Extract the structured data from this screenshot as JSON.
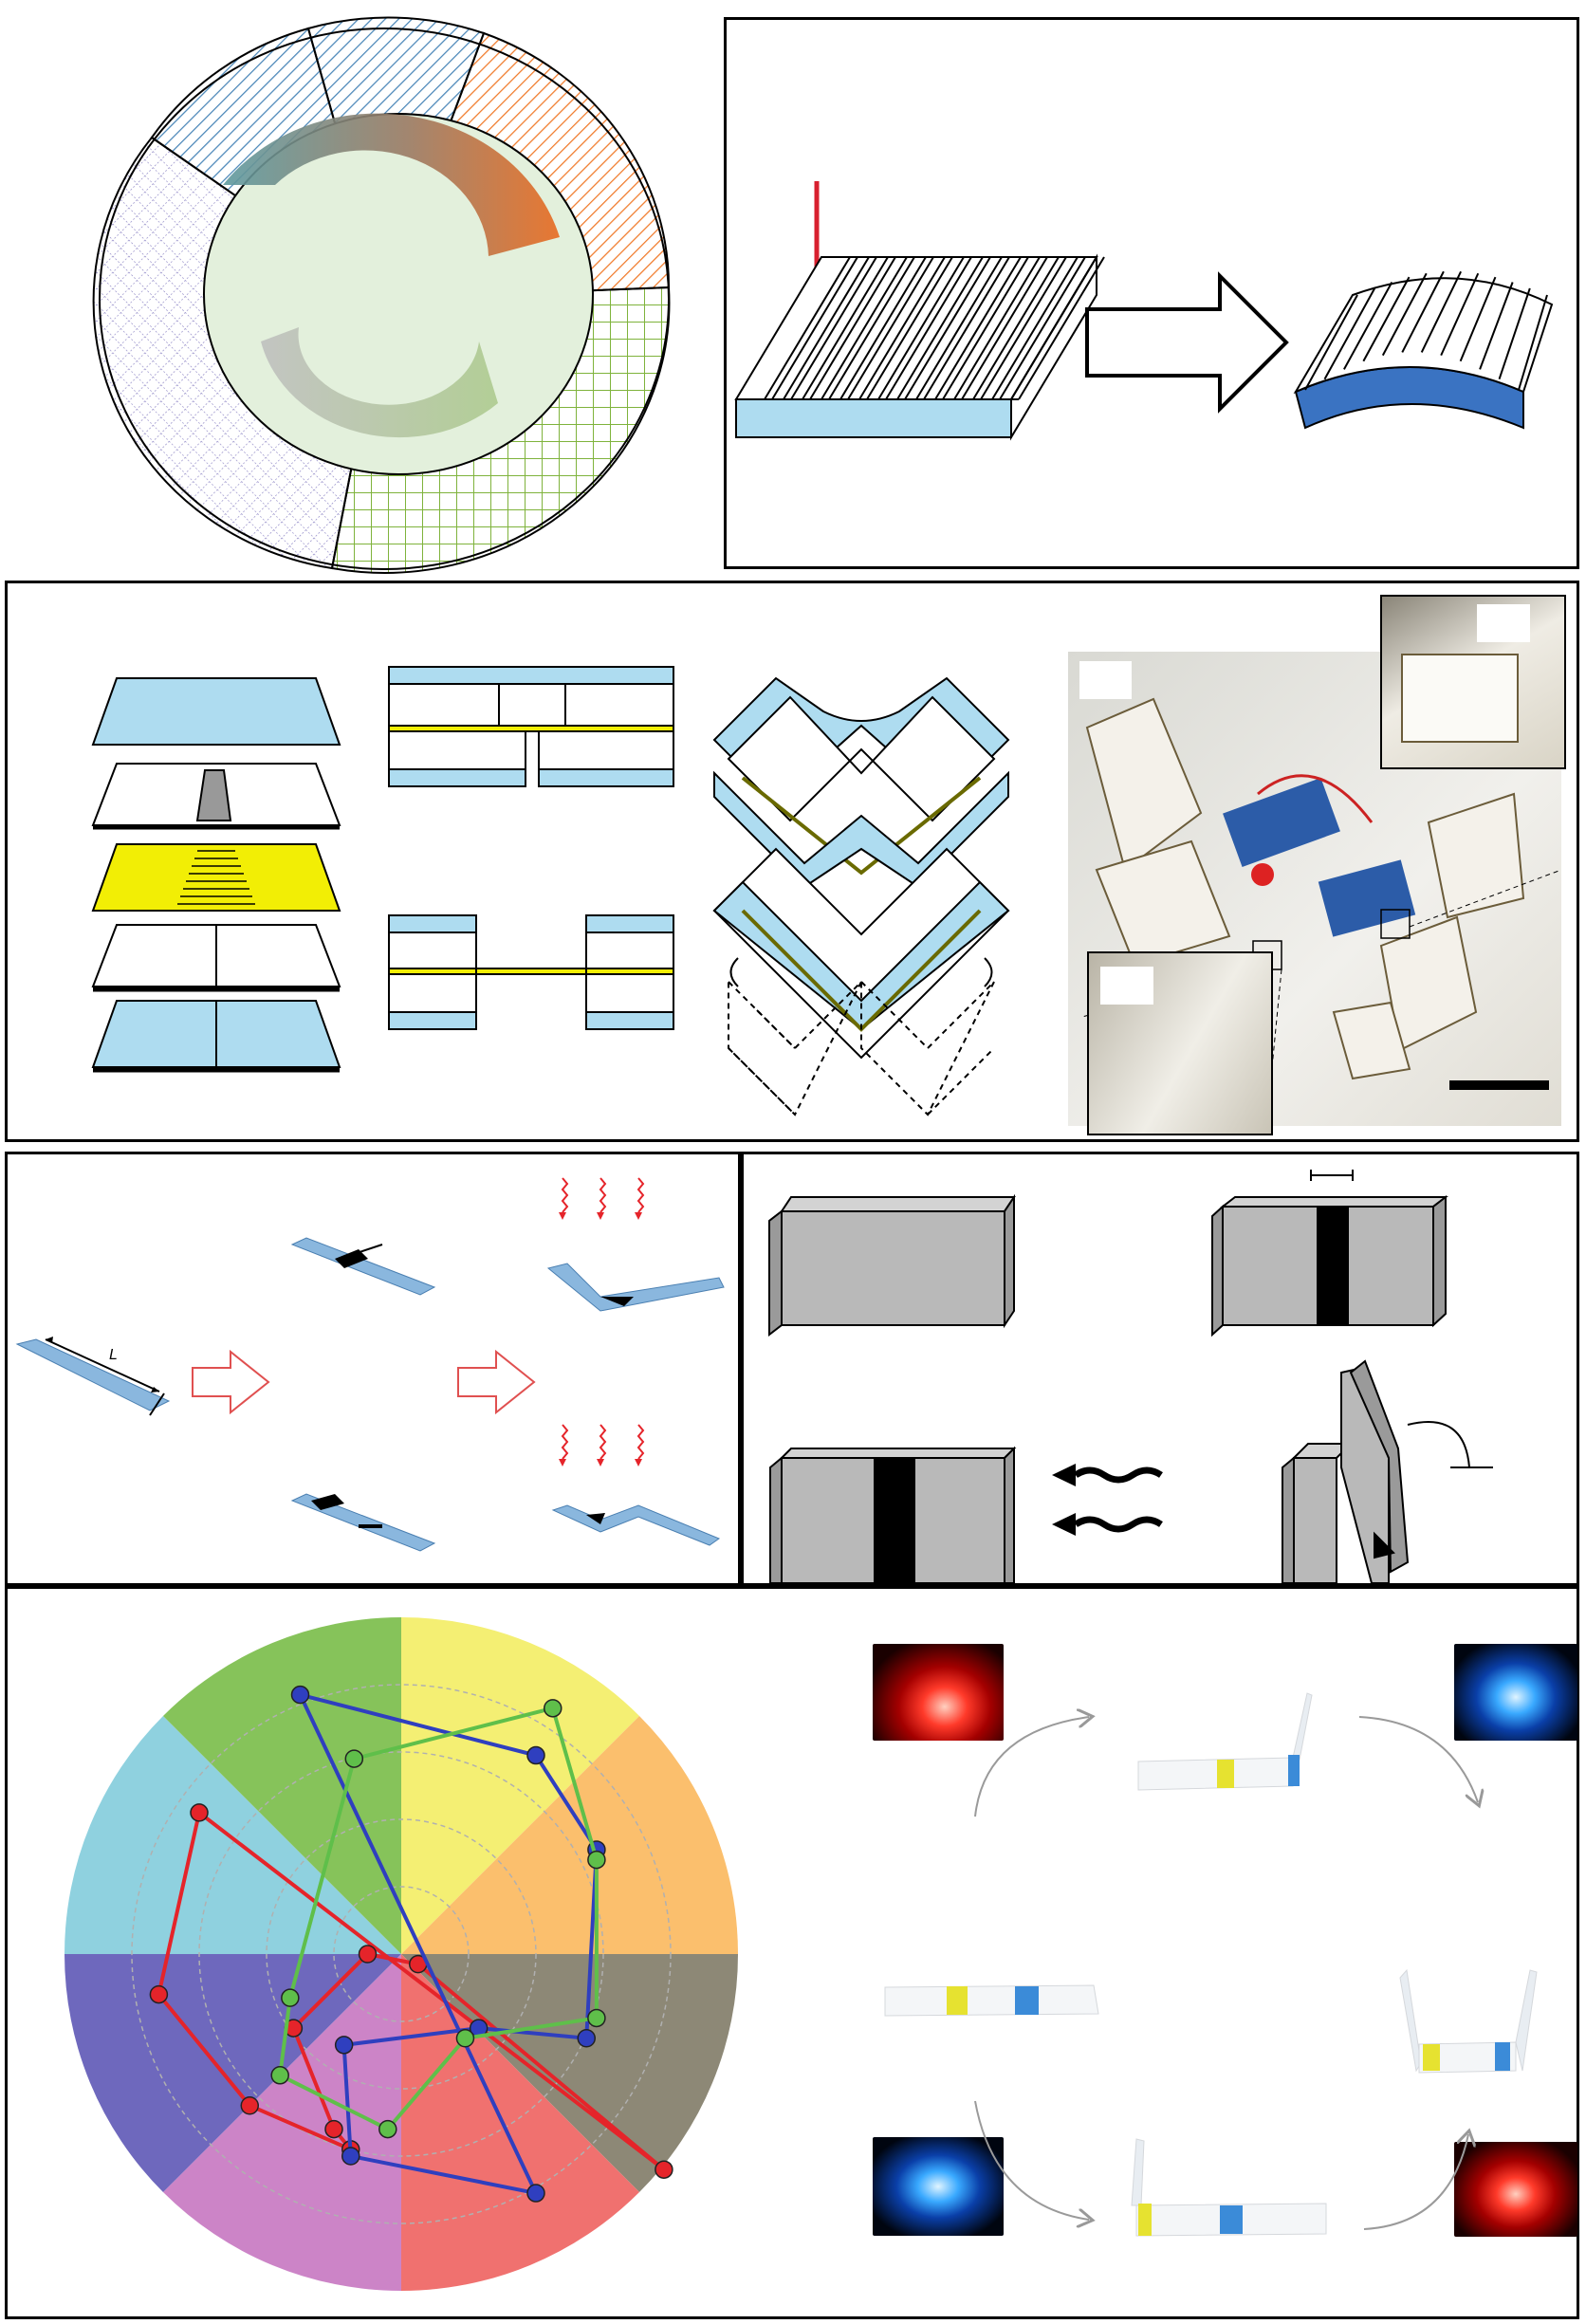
{
  "labels": {
    "length_symbol": "L"
  },
  "colors": {
    "frame": "#000000",
    "light_blue": "#aedcf0",
    "blue_dark": "#3a73c2",
    "orange": "#e86a1f",
    "teal": "#5e9aa0",
    "green_hatch": "#7fb33c",
    "purple_hatch": "#8c84c4",
    "blue_hatch": "#4a86b8",
    "orange_hatch": "#f07a2a",
    "inner_disk": "#e3f0dc",
    "yellow_layer": "#f2ee05",
    "grey_block": "#b9b9b9",
    "radar_red": "#e5242a",
    "radar_blue": "#2f3fbf",
    "radar_green": "#5fbf4a"
  },
  "icons": {
    "laser": "laser-beam-icon",
    "process_arrow": "right-arrow-icon",
    "heat": "heat-wave-icon",
    "light": "light-wave-icon",
    "cycle": "cycle-arrow-icon"
  },
  "radar": {
    "sector_colors": [
      "#f4ef73",
      "#fbbf6d",
      "#8d8876",
      "#f0716f",
      "#cc84c7",
      "#6e68bd",
      "#8fd1df",
      "#86c35a"
    ],
    "red_series": [
      [
        0.78,
        -0.64
      ],
      [
        0.05,
        -0.03
      ],
      [
        -0.1,
        0.0
      ],
      [
        -0.32,
        -0.22
      ],
      [
        -0.2,
        -0.52
      ],
      [
        -0.15,
        -0.58
      ],
      [
        -0.45,
        -0.45
      ],
      [
        -0.72,
        -0.12
      ],
      [
        -0.6,
        0.42
      ]
    ],
    "blue_series": [
      [
        -0.3,
        0.77
      ],
      [
        0.4,
        0.59
      ],
      [
        0.58,
        0.31
      ],
      [
        0.55,
        -0.25
      ],
      [
        0.23,
        -0.22
      ],
      [
        -0.17,
        -0.27
      ],
      [
        -0.15,
        -0.6
      ],
      [
        0.4,
        -0.71
      ]
    ],
    "green_series": [
      [
        -0.14,
        0.58
      ],
      [
        0.45,
        0.73
      ],
      [
        0.58,
        0.28
      ],
      [
        0.58,
        -0.19
      ],
      [
        0.19,
        -0.25
      ],
      [
        -0.04,
        -0.52
      ],
      [
        -0.36,
        -0.36
      ],
      [
        -0.33,
        -0.13
      ]
    ]
  }
}
